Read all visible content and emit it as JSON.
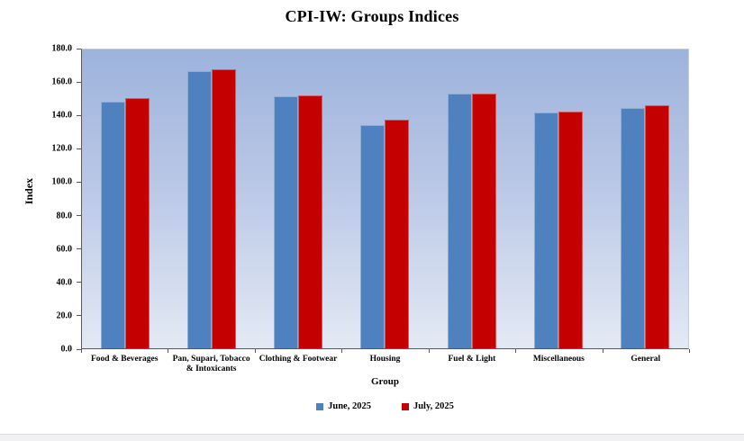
{
  "title": "CPI-IW: Groups Indices",
  "chart_data": {
    "type": "bar",
    "title": "CPI-IW: Groups Indices",
    "xlabel": "Group",
    "ylabel": "Index",
    "ylim": [
      0,
      180
    ],
    "ytick_step": 20,
    "ytick_labels": [
      "0.0",
      "20.0",
      "40.0",
      "60.0",
      "80.0",
      "100.0",
      "120.0",
      "140.0",
      "160.0",
      "180.0"
    ],
    "grid": false,
    "legend_position": "bottom",
    "plot_background_gradient": {
      "top": "#9db3dc",
      "bottom": "#e3e9f4"
    },
    "categories": [
      "Food & Beverages",
      "Pan, Supari, Tobacco & Intoxicants",
      "Clothing & Footwear",
      "Housing",
      "Fuel & Light",
      "Miscellaneous",
      "General"
    ],
    "series": [
      {
        "name": "June, 2025",
        "color": "#4e81bd",
        "values": [
          148.4,
          167.0,
          152.0,
          134.6,
          153.2,
          141.8,
          145.0
        ]
      },
      {
        "name": "July, 2025",
        "color": "#c40000",
        "values": [
          150.7,
          167.9,
          152.5,
          137.5,
          153.4,
          142.4,
          146.5
        ]
      }
    ]
  }
}
